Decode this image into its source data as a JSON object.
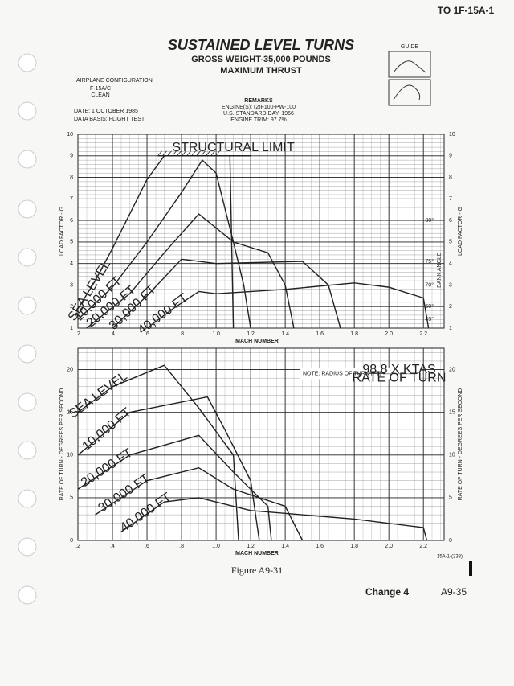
{
  "header": {
    "doc_id": "TO 1F-15A-1",
    "title": "SUSTAINED LEVEL TURNS",
    "subtitle_1": "GROSS WEIGHT-35,000 POUNDS",
    "subtitle_2": "MAXIMUM THRUST",
    "guide": "GUIDE"
  },
  "configuration": {
    "heading": "AIRPLANE CONFIGURATION",
    "lines": [
      "F-15A/C",
      "CLEAN"
    ],
    "date": "DATE: 1 OCTOBER 1985",
    "data_basis": "DATA BASIS: FLIGHT TEST"
  },
  "remarks": {
    "heading": "REMARKS",
    "lines": [
      "ENGINE(S): (2)F100-PW-100",
      "U.S. STANDARD DAY, 1966",
      "ENGINE TRIM: 97.7%"
    ]
  },
  "chart_data": [
    {
      "type": "line",
      "xlabel": "MACH NUMBER",
      "ylabel": "LOAD FACTOR - G",
      "xlim": [
        0.2,
        2.32
      ],
      "ylim": [
        1,
        10
      ],
      "xticks": [
        {
          "value": 0.2,
          "label": ".2"
        },
        {
          "value": 0.4,
          "label": ".4"
        },
        {
          "value": 0.6,
          "label": ".6"
        },
        {
          "value": 0.8,
          "label": ".8"
        },
        {
          "value": 1,
          "label": "1.0"
        },
        1.2,
        1.4,
        1.6,
        1.8,
        {
          "value": 2,
          "label": "2.0"
        },
        2.2
      ],
      "yticks": [
        1,
        2,
        3,
        4,
        5,
        6,
        7,
        8,
        9,
        10
      ],
      "grid": true,
      "annotation": "STRUCTURAL LIMIT",
      "bank_angle_label": "BANK ANGLE",
      "bank_angles": [
        "80°",
        "75°",
        "70°",
        "60°",
        "45°"
      ],
      "series": [
        {
          "name": "SEA LEVEL",
          "color": "#222",
          "x": [
            0.2,
            0.3,
            0.4,
            0.5,
            0.6,
            0.7,
            0.9,
            1.08,
            1.1
          ],
          "values": [
            1.9,
            3.2,
            4.7,
            6.3,
            7.9,
            9,
            9,
            9,
            1
          ]
        },
        {
          "name": "10,000 FT",
          "color": "#222",
          "x": [
            0.2,
            0.4,
            0.6,
            0.8,
            0.92,
            1.0,
            1.1,
            1.16,
            1.2
          ],
          "values": [
            1.4,
            2.9,
            5,
            7.3,
            8.8,
            8.2,
            5,
            3,
            1
          ]
        },
        {
          "name": "20,000 FT",
          "color": "#222",
          "x": [
            0.25,
            0.5,
            0.7,
            0.9,
            1.1,
            1.3,
            1.4,
            1.45
          ],
          "values": [
            1,
            2.6,
            4.5,
            6.3,
            5,
            4.5,
            3,
            1
          ]
        },
        {
          "name": "30,000 FT",
          "color": "#222",
          "x": [
            0.4,
            0.6,
            0.8,
            1.0,
            1.5,
            1.65,
            1.72
          ],
          "values": [
            1,
            2.5,
            4.2,
            4,
            4.1,
            3,
            1
          ]
        },
        {
          "name": "40,000 FT",
          "color": "#222",
          "x": [
            0.6,
            0.75,
            0.9,
            1.0,
            1.4,
            1.8,
            2.0,
            2.2,
            2.23
          ],
          "values": [
            1,
            1.9,
            2.7,
            2.6,
            2.8,
            3.1,
            2.9,
            2.4,
            1
          ]
        }
      ]
    },
    {
      "type": "line",
      "xlabel": "MACH NUMBER",
      "ylabel": "RATE OF TURN - DEGREES PER SECOND",
      "xlim": [
        0.2,
        2.32
      ],
      "ylim": [
        0,
        22.5
      ],
      "xticks": [
        {
          "value": 0.2,
          "label": ".2"
        },
        {
          "value": 0.4,
          "label": ".4"
        },
        {
          "value": 0.6,
          "label": ".6"
        },
        {
          "value": 0.8,
          "label": ".8"
        },
        {
          "value": 1,
          "label": "1.0"
        },
        1.2,
        1.4,
        1.6,
        1.8,
        {
          "value": 2,
          "label": "2.0"
        },
        2.2
      ],
      "yticks": [
        0,
        5,
        10,
        15,
        20
      ],
      "grid": true,
      "note": "NOTE: RADIUS OF TURN (FT) =",
      "note_numerator": "98.8 X KTAS",
      "note_denominator": "RATE OF TURN",
      "series": [
        {
          "name": "SEA LEVEL",
          "color": "#222",
          "x": [
            0.2,
            0.4,
            0.7,
            0.9,
            1.1,
            1.13
          ],
          "values": [
            15,
            18,
            20.5,
            15.5,
            10,
            0
          ]
        },
        {
          "name": "10,000 FT",
          "color": "#222",
          "x": [
            0.2,
            0.5,
            0.95,
            1.05,
            1.2,
            1.25
          ],
          "values": [
            10,
            15,
            16.8,
            13,
            7,
            0
          ]
        },
        {
          "name": "20,000 FT",
          "color": "#222",
          "x": [
            0.2,
            0.5,
            0.9,
            1.1,
            1.3,
            1.32
          ],
          "values": [
            6,
            10,
            12.3,
            8,
            4,
            0
          ]
        },
        {
          "name": "30,000 FT",
          "color": "#222",
          "x": [
            0.3,
            0.6,
            0.9,
            1.1,
            1.4,
            1.5
          ],
          "values": [
            3,
            7,
            8.5,
            6,
            4,
            0
          ]
        },
        {
          "name": "40,000 FT",
          "color": "#222",
          "x": [
            0.45,
            0.7,
            0.9,
            1.2,
            1.8,
            2.2,
            2.22
          ],
          "values": [
            1,
            4.5,
            5,
            3.5,
            2.5,
            1.5,
            0
          ]
        }
      ]
    }
  ],
  "footer": {
    "figure": "Figure A9-31",
    "code": "15A-1-(238)",
    "change": "Change 4",
    "page": "A9-35"
  }
}
